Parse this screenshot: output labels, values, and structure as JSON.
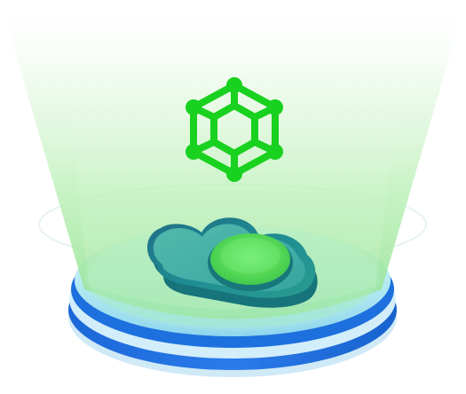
{
  "illustration": {
    "icons": {
      "top": "hexagonal-network-icon",
      "platform": "cloud-icon"
    },
    "colors": {
      "beam_green": "#8FE08F",
      "icon_green": "#19D11F",
      "cloud_teal": "#1F8E93",
      "cloud_teal_dark": "#14777B",
      "cloud_top": "#48B9AD",
      "center_circle": "#58D957",
      "disc_top": "#B7EBF3",
      "disc_blue": "#1F73E0",
      "disc_blue_dark": "#1762CE",
      "outline": "#D8F2EE"
    }
  }
}
